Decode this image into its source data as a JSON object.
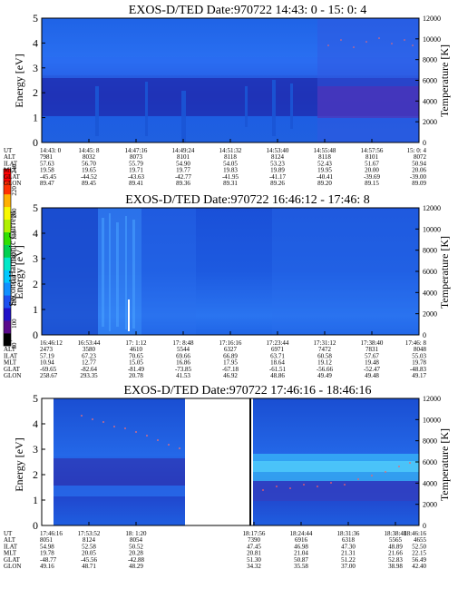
{
  "colorbar": {
    "label": "Second Harmonic Current",
    "ticks": [
      "80",
      "100",
      "120",
      "140",
      "160",
      "180",
      "200",
      "220",
      "240"
    ],
    "colors": [
      "#000000",
      "#5a0a8c",
      "#2010c8",
      "#1c50f0",
      "#1090ff",
      "#00c8ff",
      "#00e8c8",
      "#00d050",
      "#30e000",
      "#b0f000",
      "#f8f800",
      "#ffb000",
      "#ff3000",
      "#ff0000"
    ]
  },
  "panels": [
    {
      "title": "EXOS-D/TED   Date:970722  14:43: 0 - 15: 0: 4",
      "ylabel": "Energy [eV]",
      "y2label": "Temperature [K]",
      "yticks": [
        "0",
        "1",
        "2",
        "3",
        "4",
        "5"
      ],
      "y2ticks": [
        "0",
        "2000",
        "4000",
        "6000",
        "8000",
        "10000",
        "12000"
      ],
      "row_labels": [
        "UT",
        "ALT",
        "ILAT",
        "MLT",
        "GLAT",
        "GLON"
      ],
      "columns": [
        [
          "14:43: 0",
          "7981",
          "57.63",
          "19.58",
          "-45.45",
          "89.47"
        ],
        [
          "14:45: 8",
          "8032",
          "56.70",
          "19.65",
          "-44.52",
          "89.45"
        ],
        [
          "14:47:16",
          "8073",
          "55.79",
          "19.71",
          "-43.63",
          "89.41"
        ],
        [
          "14:49:24",
          "8101",
          "54.90",
          "19.77",
          "-42.77",
          "89.36"
        ],
        [
          "14:51:32",
          "8118",
          "54.05",
          "19.83",
          "-41.95",
          "89.31"
        ],
        [
          "14:53:40",
          "8124",
          "53.23",
          "19.89",
          "-41.17",
          "89.26"
        ],
        [
          "14:55:48",
          "8118",
          "52.43",
          "19.95",
          "-40.41",
          "89.20"
        ],
        [
          "14:57:56",
          "8101",
          "51.67",
          "20.00",
          "-39.69",
          "89.15"
        ],
        [
          "15: 0: 4",
          "8072",
          "50.94",
          "20.06",
          "-39.00",
          "89.09"
        ]
      ]
    },
    {
      "title": "EXOS-D/TED   Date:970722  16:46:12 - 17:46: 8",
      "ylabel": "Energy [eV]",
      "y2label": "Temperature [K]",
      "yticks": [
        "0",
        "1",
        "2",
        "3",
        "4",
        "5"
      ],
      "y2ticks": [
        "0",
        "2000",
        "4000",
        "6000",
        "8000",
        "10000",
        "12000"
      ],
      "row_labels": [
        "UT",
        "ALT",
        "ILAT",
        "MLT",
        "GLAT",
        "GLON"
      ],
      "columns": [
        [
          "16:46:12",
          "2473",
          "57.19",
          "10.94",
          "-69.65",
          "258.67"
        ],
        [
          "16:53:44",
          "3580",
          "67.23",
          "12.77",
          "-82.64",
          "293.35"
        ],
        [
          "17: 1:12",
          "4610",
          "70.65",
          "15.05",
          "-81.49",
          "20.78"
        ],
        [
          "17: 8:48",
          "5544",
          "69.66",
          "16.86",
          "-73.85",
          "41.53"
        ],
        [
          "17:16:16",
          "6327",
          "66.89",
          "17.95",
          "-67.18",
          "46.92"
        ],
        [
          "17:23:44",
          "6971",
          "63.71",
          "18.64",
          "-61.51",
          "48.86"
        ],
        [
          "17:31:12",
          "7472",
          "60.58",
          "19.12",
          "-56.66",
          "49.49"
        ],
        [
          "17:38:40",
          "7831",
          "57.67",
          "19.48",
          "-52.47",
          "49.48"
        ],
        [
          "17:46: 8",
          "8048",
          "55.03",
          "19.78",
          "-48.83",
          "49.17"
        ]
      ]
    },
    {
      "title": "EXOS-D/TED   Date:970722  17:46:16 - 18:46:16",
      "ylabel": "Energy [eV]",
      "y2label": "Temperature [K]",
      "yticks": [
        "0",
        "1",
        "2",
        "3",
        "4",
        "5"
      ],
      "y2ticks": [
        "0",
        "2000",
        "4000",
        "6000",
        "8000",
        "10000",
        "12000"
      ],
      "row_labels": [
        "UT",
        "ALT",
        "ILAT",
        "MLT",
        "GLAT",
        "GLON"
      ],
      "columns": [
        [
          "17:46:16",
          "8051",
          "54.98",
          "19.78",
          "-48.77",
          "49.16"
        ],
        [
          "17:53:52",
          "8124",
          "52.58",
          "20.05",
          "-45.56",
          "48.71"
        ],
        [
          "18: 1:20",
          "8054",
          "50.52",
          "20.28",
          "-42.88",
          "48.29"
        ],
        [
          "18:17:56",
          "7390",
          "47.45",
          "20.81",
          "51.30",
          "34.32"
        ],
        [
          "18:24:44",
          "6916",
          "46.98",
          "21.04",
          "50.87",
          "35.58"
        ],
        [
          "18:31:36",
          "6318",
          "47.30",
          "21.31",
          "51.22",
          "37.00"
        ],
        [
          "18:38:48",
          "5565",
          "48.89",
          "21.66",
          "52.83",
          "38.98"
        ],
        [
          "18:46:16",
          "4655",
          "52.50",
          "22.15",
          "56.49",
          "42.40"
        ]
      ]
    }
  ],
  "chart_data": [
    {
      "type": "heatmap",
      "title": "EXOS-D/TED   Date:970722  14:43: 0 - 15: 0: 4",
      "xlabel": "UT",
      "ylabel": "Energy [eV]",
      "y2label": "Temperature [K]",
      "ylim": [
        0,
        5
      ],
      "y2lim": [
        0,
        12000
      ],
      "x_ticks": [
        "14:43: 0",
        "14:45: 8",
        "14:47:16",
        "14:49:24",
        "14:51:32",
        "14:53:40",
        "14:55:48",
        "14:57:56",
        "15: 0: 4"
      ],
      "grid": false
    },
    {
      "type": "heatmap",
      "title": "EXOS-D/TED   Date:970722  16:46:12 - 17:46: 8",
      "xlabel": "UT",
      "ylabel": "Energy [eV]",
      "y2label": "Temperature [K]",
      "ylim": [
        0,
        5
      ],
      "y2lim": [
        0,
        12000
      ],
      "x_ticks": [
        "16:46:12",
        "16:53:44",
        "17: 1:12",
        "17: 8:48",
        "17:16:16",
        "17:23:44",
        "17:31:12",
        "17:38:40",
        "17:46: 8"
      ],
      "grid": false
    },
    {
      "type": "heatmap",
      "title": "EXOS-D/TED   Date:970722  17:46:16 - 18:46:16",
      "xlabel": "UT",
      "ylabel": "Energy [eV]",
      "y2label": "Temperature [K]",
      "ylim": [
        0,
        5
      ],
      "y2lim": [
        0,
        12000
      ],
      "x_ticks": [
        "17:46:16",
        "17:53:52",
        "18: 1:20",
        "18:17:56",
        "18:24:44",
        "18:31:36",
        "18:38:48",
        "18:46:16"
      ],
      "grid": false
    }
  ]
}
